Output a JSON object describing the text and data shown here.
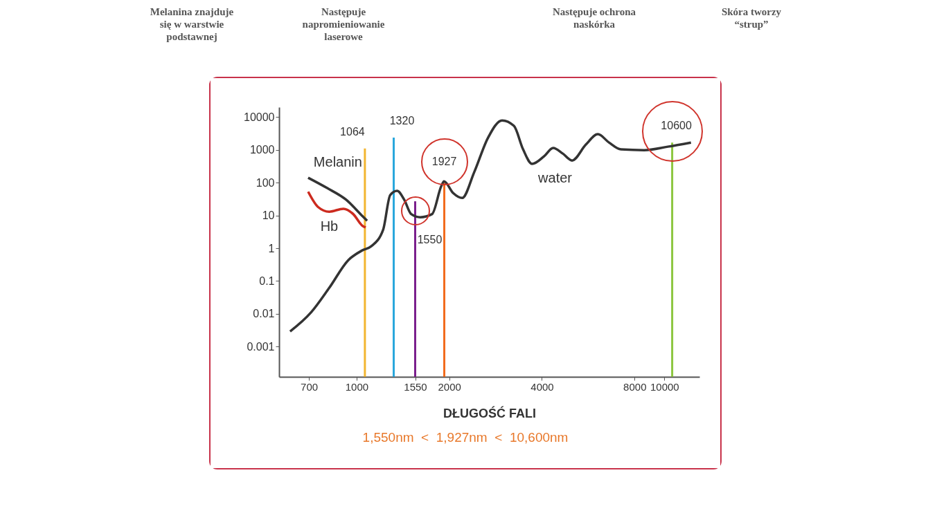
{
  "chart_data": {
    "type": "line",
    "xlabel": "DŁUGOŚĆ FALI",
    "log": "xy",
    "xlim": [
      560,
      13000
    ],
    "xticks": [
      700,
      1000,
      1550,
      2000,
      4000,
      8000,
      10000
    ],
    "ylim": [
      0.00012,
      20000
    ],
    "yticks": [
      0.001,
      0.01,
      0.1,
      1,
      10,
      100,
      1000,
      10000
    ],
    "grid": false,
    "legend": false,
    "series": [
      {
        "type": "bar",
        "colors": [
          "#f2b530",
          "#2aa7dc",
          "#7a1f8c",
          "#f26b1d",
          "#8cc63f"
        ],
        "x": [
          1064,
          1320,
          1550,
          1927,
          10600
        ],
        "values": [
          1100,
          2350,
          27,
          100,
          1670
        ]
      },
      {
        "name": "water",
        "color": "#333333",
        "x": [
          608,
          711,
          815,
          939,
          1043,
          1116,
          1220,
          1286,
          1354,
          1428,
          1504,
          1610,
          1759,
          1884,
          1923,
          2060,
          2203,
          2410,
          2674,
          2970,
          3245,
          3475,
          3717,
          4064,
          4351,
          4677,
          5012,
          5559,
          6081,
          6607,
          7228,
          8590,
          10260,
          12200
        ],
        "values": [
          0.0029,
          0.011,
          0.062,
          0.43,
          0.86,
          1.15,
          3.7,
          42,
          56,
          30,
          11,
          8.8,
          11,
          78,
          110,
          48,
          34,
          207,
          2350,
          7900,
          5370,
          1030,
          372,
          634,
          1135,
          769,
          473,
          1450,
          3000,
          1670,
          1030,
          980,
          1250,
          1670
        ]
      },
      {
        "name": "Melanin",
        "color": "#333333",
        "x": [
          696,
          803,
          925,
          1043,
          1082
        ],
        "values": [
          141,
          68,
          30,
          9.7,
          6.9
        ]
      },
      {
        "name": "Hb",
        "color": "#cc2a1e",
        "x": [
          696,
          750,
          815,
          906,
          975,
          1043,
          1070
        ],
        "values": [
          53,
          18,
          13,
          16,
          11,
          4.9,
          4.3
        ]
      }
    ],
    "annotations": [
      "Melanina znajduje się w warstwie podstawnej",
      "Następuje napromieniowanie laserowe",
      "Następuje ochrona naskórka",
      "Skóra tworzy “strup”",
      "1,550nm  <  1,927nm  <  10,600nm",
      "1064",
      "1320",
      "1550",
      "1927",
      "10600"
    ]
  }
}
